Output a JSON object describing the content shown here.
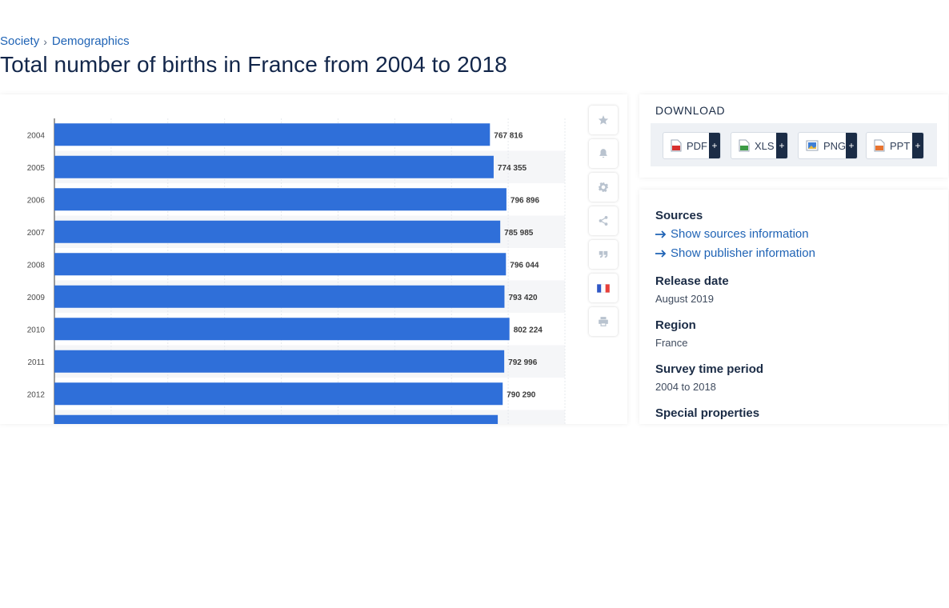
{
  "breadcrumb": {
    "items": [
      "Society",
      "Demographics"
    ],
    "separator": "›"
  },
  "page_title": "Total number of births in France from 2004 to 2018",
  "chart_data": {
    "type": "bar",
    "orientation": "horizontal",
    "categories": [
      "2004",
      "2005",
      "2006",
      "2007",
      "2008",
      "2009",
      "2010",
      "2011",
      "2012"
    ],
    "values": [
      767816,
      774355,
      796896,
      785985,
      796044,
      793420,
      802224,
      792996,
      790290
    ],
    "data_labels": [
      "767 816",
      "774 355",
      "796 896",
      "785 985",
      "796 044",
      "793 420",
      "802 224",
      "792 996",
      "790 290"
    ],
    "partial_next_category_value": 781621,
    "xlim": [
      0,
      900000
    ],
    "grid": true,
    "bar_color": "#2f6fd9",
    "title": "",
    "xlabel": "",
    "ylabel": ""
  },
  "tools": [
    {
      "name": "favorite",
      "icon": "star-icon"
    },
    {
      "name": "notify",
      "icon": "bell-icon"
    },
    {
      "name": "settings",
      "icon": "gear-icon"
    },
    {
      "name": "share",
      "icon": "share-icon"
    },
    {
      "name": "cite",
      "icon": "quote-icon"
    },
    {
      "name": "language",
      "icon": "french-flag-icon"
    },
    {
      "name": "print",
      "icon": "printer-icon"
    }
  ],
  "download": {
    "title": "DOWNLOAD",
    "buttons": [
      {
        "label": "PDF",
        "plus": "+",
        "icon": "pdf-file-icon"
      },
      {
        "label": "XLS",
        "plus": "+",
        "icon": "xls-file-icon"
      },
      {
        "label": "PNG",
        "plus": "+",
        "icon": "png-file-icon"
      },
      {
        "label": "PPT",
        "plus": "+",
        "icon": "ppt-file-icon"
      }
    ]
  },
  "info": {
    "sources_heading": "Sources",
    "show_sources": "Show sources information",
    "show_publisher": "Show publisher information",
    "release_date_heading": "Release date",
    "release_date": "August 2019",
    "region_heading": "Region",
    "region": "France",
    "survey_period_heading": "Survey time period",
    "survey_period": "2004 to 2018",
    "special_properties_heading": "Special properties"
  },
  "colors": {
    "accent": "#1f63b5",
    "bar": "#2f6fd9",
    "dark": "#1b2c46"
  }
}
